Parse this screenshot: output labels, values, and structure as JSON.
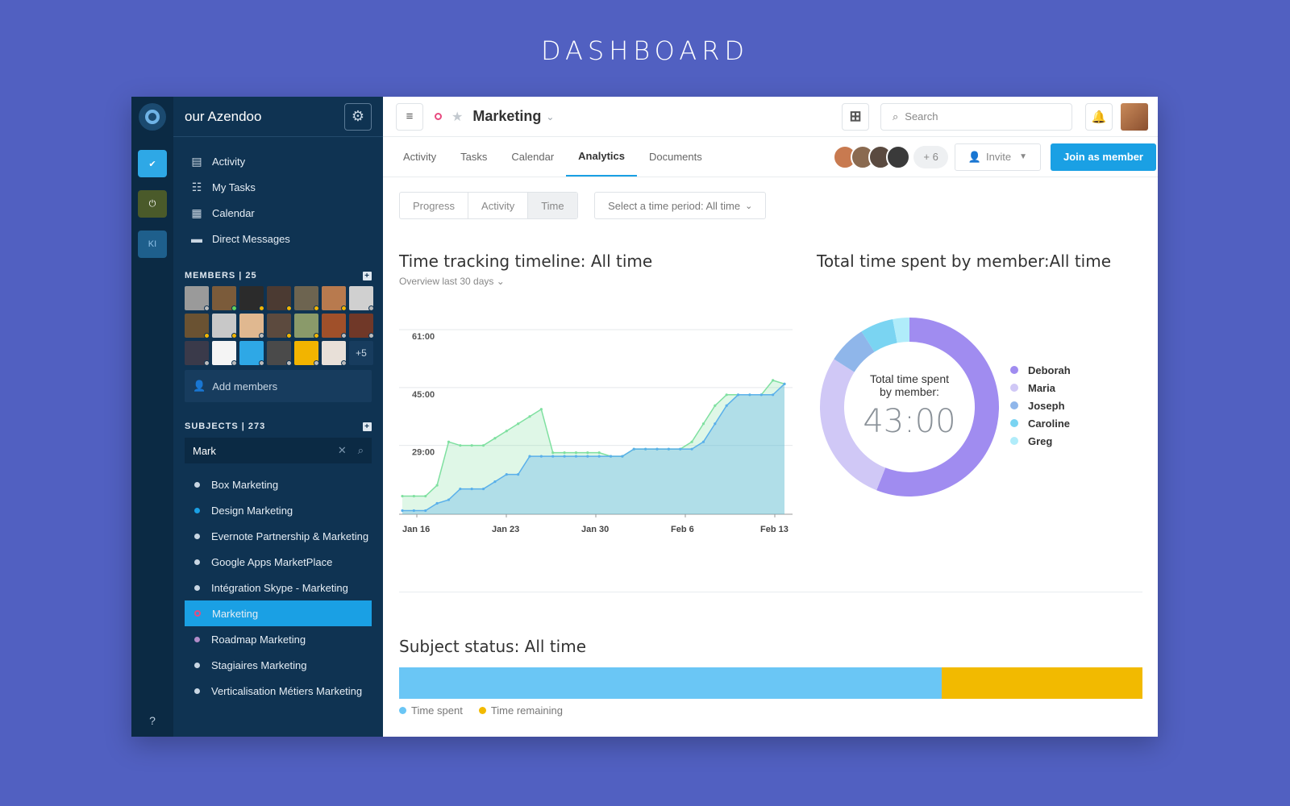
{
  "page_title": "DASHBOARD",
  "sidebar": {
    "workspace_name": "our Azendoo",
    "rail_ws3": "KI",
    "help": "?",
    "nav": [
      {
        "label": "Activity",
        "icon": "activity-icon"
      },
      {
        "label": "My Tasks",
        "icon": "tasks-icon"
      },
      {
        "label": "Calendar",
        "icon": "calendar-icon"
      },
      {
        "label": "Direct Messages",
        "icon": "messages-icon"
      }
    ],
    "members_header": "MEMBERS | 25",
    "members_more": "+5",
    "add_members": "Add members",
    "subjects_header": "SUBJECTS | 273",
    "search_value": "Mark",
    "subjects": [
      "Box Marketing",
      "Design Marketing",
      "Evernote Partnership & Marketing",
      "Google Apps MarketPlace",
      "Intégration Skype - Marketing",
      "Marketing",
      "Roadmap Marketing",
      "Stagiaires Marketing",
      "Verticalisation Métiers Marketing"
    ]
  },
  "topbar": {
    "subject": "Marketing",
    "search_placeholder": "Search"
  },
  "tabs": [
    "Activity",
    "Tasks",
    "Calendar",
    "Analytics",
    "Documents"
  ],
  "members_extra": "+ 6",
  "invite_label": "Invite",
  "join_label": "Join as member",
  "filters": {
    "segments": [
      "Progress",
      "Activity",
      "Time"
    ],
    "period": "Select a time period: All time"
  },
  "timeline": {
    "title": "Time tracking timeline: All time",
    "subtitle": "Overview last 30 days"
  },
  "donut": {
    "title": "Total time spent by member:All time",
    "center_label_1": "Total time spent",
    "center_label_2": "by member:",
    "center_value": "43:00"
  },
  "status": {
    "title": "Subject status: All time",
    "legend_spent": "Time spent",
    "legend_remaining": "Time remaining"
  },
  "chart_data": [
    {
      "type": "area",
      "title": "Time tracking timeline: All time",
      "y_ticks": [
        "29:00",
        "45:00",
        "61:00"
      ],
      "x_ticks": [
        "Jan 16",
        "Jan 23",
        "Jan 30",
        "Feb 6",
        "Feb 13"
      ],
      "ylim": [
        10,
        63
      ],
      "series": [
        {
          "color": "#7fe0a0",
          "values": [
            15,
            15,
            15,
            18,
            30,
            29,
            29,
            29,
            31,
            33,
            35,
            37,
            39,
            27,
            27,
            27,
            27,
            27,
            26,
            26,
            28,
            28,
            28,
            28,
            28,
            30,
            35,
            40,
            43,
            43,
            43,
            43,
            47,
            46
          ]
        },
        {
          "color": "#5ab0ea",
          "values": [
            11,
            11,
            11,
            13,
            14,
            17,
            17,
            17,
            19,
            21,
            21,
            26,
            26,
            26,
            26,
            26,
            26,
            26,
            26,
            26,
            28,
            28,
            28,
            28,
            28,
            28,
            30,
            35,
            40,
            43,
            43,
            43,
            43,
            46
          ]
        }
      ]
    },
    {
      "type": "pie",
      "title": "Total time spent by member:All time",
      "series": [
        {
          "name": "Deborah",
          "value": 56,
          "color": "#a08cf0"
        },
        {
          "name": "Maria",
          "value": 28,
          "color": "#d0c8f6"
        },
        {
          "name": "Joseph",
          "value": 7,
          "color": "#8fb6ea"
        },
        {
          "name": "Caroline",
          "value": 6,
          "color": "#7ad4f2"
        },
        {
          "name": "Greg",
          "value": 3,
          "color": "#b0ecfa"
        }
      ]
    },
    {
      "type": "bar",
      "title": "Subject status: All time",
      "series": [
        {
          "name": "Time spent",
          "value": 73,
          "color": "#6ac6f5"
        },
        {
          "name": "Time remaining",
          "value": 27,
          "color": "#f2ba00"
        }
      ]
    }
  ]
}
